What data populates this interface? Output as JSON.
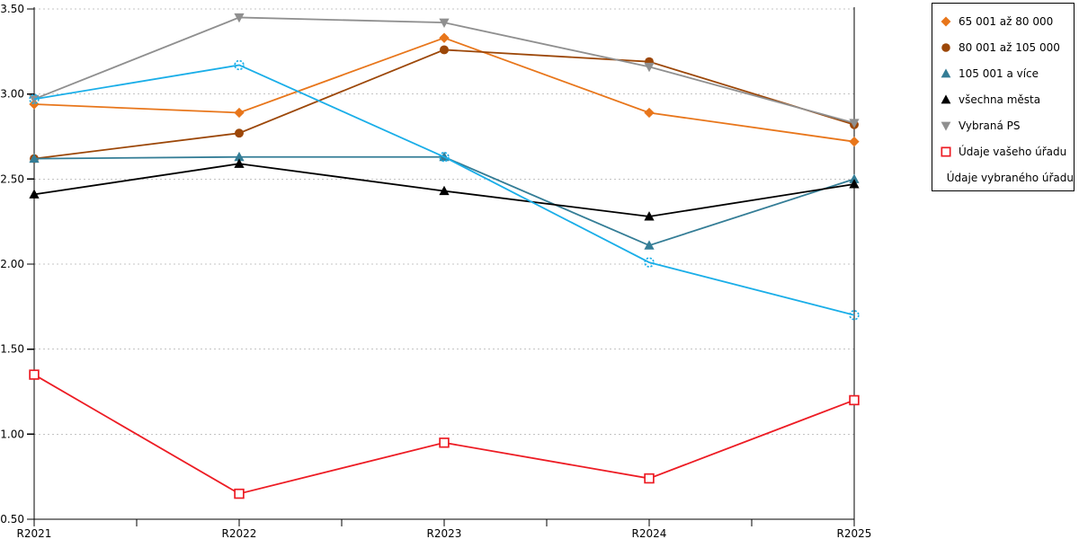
{
  "chart_data": {
    "type": "line",
    "categories": [
      "R2021",
      "R2022",
      "R2023",
      "R2024",
      "R2025"
    ],
    "series": [
      {
        "name": "65 001 až 80 000",
        "color": "#E8761B",
        "marker": "diamond",
        "marker_style": "filled",
        "values": [
          2.94,
          2.89,
          3.33,
          2.89,
          2.72
        ]
      },
      {
        "name": "80 001 až 105 000",
        "color": "#9C4708",
        "marker": "circle",
        "marker_style": "filled",
        "values": [
          2.62,
          2.77,
          3.26,
          3.19,
          2.82
        ]
      },
      {
        "name": "105 001 a více",
        "color": "#347D96",
        "marker": "triangle-up",
        "marker_style": "filled",
        "values": [
          2.62,
          2.63,
          2.63,
          2.11,
          2.5
        ]
      },
      {
        "name": "všechna města",
        "color": "#000000",
        "marker": "triangle-up",
        "marker_style": "filled",
        "values": [
          2.41,
          2.59,
          2.43,
          2.28,
          2.47
        ]
      },
      {
        "name": "Vybraná PS",
        "color": "#8F8F8F",
        "marker": "triangle-down",
        "marker_style": "filled",
        "values": [
          2.97,
          3.45,
          3.42,
          3.16,
          2.83
        ]
      },
      {
        "name": "Údaje vašeho úřadu",
        "color": "#ED1C24",
        "marker": "square",
        "marker_style": "open",
        "values": [
          1.35,
          0.65,
          0.95,
          0.74,
          1.2
        ]
      },
      {
        "name": "Údaje vybraného úřadu",
        "color": "#1AAEE8",
        "marker": "circle-dashed",
        "marker_style": "open",
        "values": [
          2.97,
          3.17,
          2.63,
          2.01,
          1.7
        ]
      }
    ],
    "ylim": [
      0.5,
      3.5
    ],
    "ytick_step": 0.5,
    "ytick_labels": [
      "0.50",
      "1.00",
      "1.50",
      "2.00",
      "2.50",
      "3.00",
      "3.50"
    ],
    "grid": "horizontal-dashed",
    "legend_position": "right",
    "xlabel": "",
    "ylabel": ""
  },
  "colors": {
    "background": "#FFFFFF",
    "axis": "#000000",
    "gridline": "#C4C4C4",
    "legend_border": "#000000"
  }
}
